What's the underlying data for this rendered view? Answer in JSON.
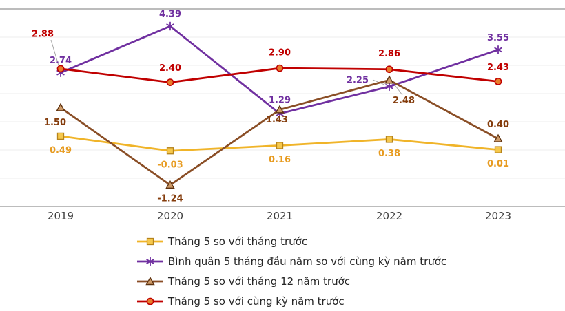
{
  "chart_data": {
    "type": "line",
    "title": "",
    "xlabel": "",
    "ylabel": "",
    "ylim": [
      -2,
      5
    ],
    "grid": true,
    "legend_position": "bottom",
    "categories": [
      "2019",
      "2020",
      "2021",
      "2022",
      "2023"
    ],
    "series": [
      {
        "name": "Tháng 5 so với tháng trước",
        "marker": "square",
        "color": "#F0B429",
        "marker_fill": "#F6C84C",
        "marker_stroke": "#B5831C",
        "label_color": "#E79B20",
        "values": [
          0.49,
          -0.03,
          0.16,
          0.38,
          0.01
        ]
      },
      {
        "name": "Bình quân 5 tháng đầu năm so với cùng kỳ năm trước",
        "marker": "asterisk",
        "color": "#7030A0",
        "marker_fill": "none",
        "marker_stroke": "#7030A0",
        "label_color": "#7030A0",
        "values": [
          2.74,
          4.39,
          1.29,
          2.25,
          3.55
        ]
      },
      {
        "name": "Tháng 5 so với tháng 12 năm trước",
        "marker": "triangle",
        "color": "#8A4E26",
        "marker_fill": "#CE9B68",
        "marker_stroke": "#5E3210",
        "label_color": "#843C0C",
        "values": [
          1.5,
          -1.24,
          1.43,
          2.48,
          0.4
        ]
      },
      {
        "name": "Tháng 5 so với cùng kỳ năm trước",
        "marker": "circle",
        "color": "#C00000",
        "marker_fill": "#E87D2B",
        "marker_stroke": "#C00000",
        "label_color": "#C00000",
        "values": [
          2.88,
          2.4,
          2.9,
          2.86,
          2.43
        ]
      }
    ]
  },
  "colors": {
    "axis": "#A6A6A6",
    "gridline": "#EDEDED",
    "leader": "#A6A6A6",
    "tick_label": "#404040",
    "legend_text": "#262626",
    "background": "#FFFFFF"
  }
}
